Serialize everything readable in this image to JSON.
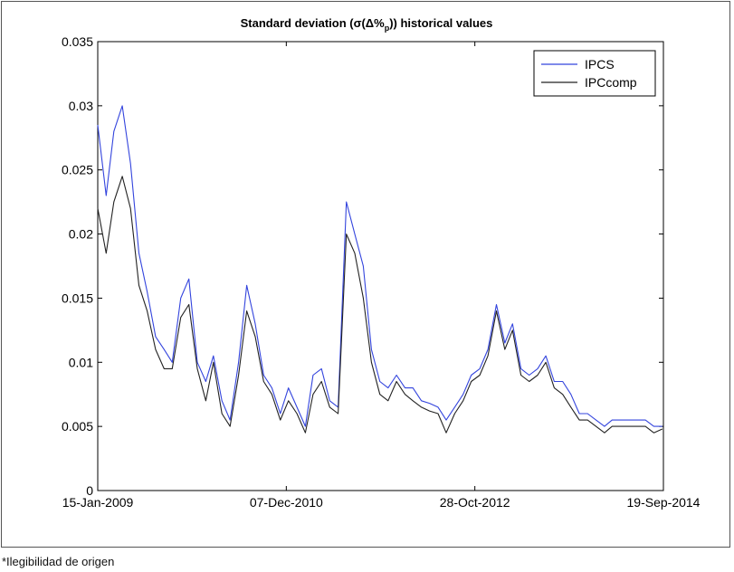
{
  "chart_data": {
    "type": "line",
    "title_parts": {
      "prefix": "Standard deviation (σ(Δ%",
      "subscript": "p",
      "suffix": ")) historical values"
    },
    "xlabel": "",
    "ylabel": "",
    "x_ticks": [
      {
        "date": "2009-01-15",
        "label": "15-Jan-2009"
      },
      {
        "date": "2010-12-07",
        "label": "07-Dec-2010"
      },
      {
        "date": "2012-10-28",
        "label": "28-Oct-2012"
      },
      {
        "date": "2014-09-19",
        "label": "19-Sep-2014"
      }
    ],
    "x_range": [
      "2009-01-15",
      "2014-09-19"
    ],
    "ylim": [
      0,
      0.035
    ],
    "y_ticks": [
      {
        "value": 0,
        "label": "0"
      },
      {
        "value": 0.005,
        "label": "0.005"
      },
      {
        "value": 0.01,
        "label": "0.01"
      },
      {
        "value": 0.015,
        "label": "0.015"
      },
      {
        "value": 0.02,
        "label": "0.02"
      },
      {
        "value": 0.025,
        "label": "0.025"
      },
      {
        "value": 0.03,
        "label": "0.03"
      },
      {
        "value": 0.035,
        "label": "0.035"
      }
    ],
    "grid": false,
    "legend_position": "top-right",
    "x": [
      "2009-01-15",
      "2009-02-15",
      "2009-03-15",
      "2009-04-15",
      "2009-05-15",
      "2009-06-15",
      "2009-07-15",
      "2009-08-15",
      "2009-09-15",
      "2009-10-15",
      "2009-11-15",
      "2009-12-15",
      "2010-01-15",
      "2010-02-15",
      "2010-03-15",
      "2010-04-15",
      "2010-05-15",
      "2010-06-15",
      "2010-07-15",
      "2010-08-15",
      "2010-09-15",
      "2010-10-15",
      "2010-11-15",
      "2010-12-15",
      "2011-01-15",
      "2011-02-15",
      "2011-03-15",
      "2011-04-15",
      "2011-05-15",
      "2011-06-15",
      "2011-07-15",
      "2011-08-15",
      "2011-09-15",
      "2011-10-15",
      "2011-11-15",
      "2011-12-15",
      "2012-01-15",
      "2012-02-15",
      "2012-03-15",
      "2012-04-15",
      "2012-05-15",
      "2012-06-15",
      "2012-07-15",
      "2012-08-15",
      "2012-09-15",
      "2012-10-15",
      "2012-11-15",
      "2012-12-15",
      "2013-01-15",
      "2013-02-15",
      "2013-03-15",
      "2013-04-15",
      "2013-05-15",
      "2013-06-15",
      "2013-07-15",
      "2013-08-15",
      "2013-09-15",
      "2013-10-15",
      "2013-11-15",
      "2013-12-15",
      "2014-01-15",
      "2014-02-15",
      "2014-03-15",
      "2014-04-15",
      "2014-05-15",
      "2014-06-15",
      "2014-07-15",
      "2014-08-15",
      "2014-09-15"
    ],
    "series": [
      {
        "name": "IPCS",
        "color": "#3344dd",
        "values": [
          0.0285,
          0.023,
          0.028,
          0.03,
          0.0255,
          0.0185,
          0.0155,
          0.012,
          0.011,
          0.01,
          0.015,
          0.0165,
          0.01,
          0.0085,
          0.0105,
          0.007,
          0.0055,
          0.01,
          0.016,
          0.013,
          0.009,
          0.008,
          0.006,
          0.008,
          0.0065,
          0.005,
          0.009,
          0.0095,
          0.007,
          0.0065,
          0.0225,
          0.02,
          0.0175,
          0.011,
          0.0085,
          0.008,
          0.009,
          0.008,
          0.008,
          0.007,
          0.0068,
          0.0065,
          0.0055,
          0.0065,
          0.0075,
          0.009,
          0.0095,
          0.011,
          0.0145,
          0.0115,
          0.013,
          0.0095,
          0.009,
          0.0095,
          0.0105,
          0.0085,
          0.0085,
          0.0075,
          0.006,
          0.006,
          0.0055,
          0.005,
          0.0055,
          0.0055,
          0.0055,
          0.0055,
          0.0055,
          0.005,
          0.005
        ]
      },
      {
        "name": "IPCcomp",
        "color": "#222222",
        "values": [
          0.022,
          0.0185,
          0.0225,
          0.0245,
          0.022,
          0.016,
          0.014,
          0.011,
          0.0095,
          0.0095,
          0.0135,
          0.0145,
          0.0095,
          0.007,
          0.01,
          0.006,
          0.005,
          0.009,
          0.014,
          0.012,
          0.0085,
          0.0075,
          0.0055,
          0.007,
          0.006,
          0.0045,
          0.0075,
          0.0085,
          0.0065,
          0.006,
          0.02,
          0.0185,
          0.015,
          0.01,
          0.0075,
          0.007,
          0.0085,
          0.0075,
          0.007,
          0.0065,
          0.0062,
          0.006,
          0.0045,
          0.006,
          0.007,
          0.0085,
          0.009,
          0.0105,
          0.014,
          0.011,
          0.0125,
          0.009,
          0.0085,
          0.009,
          0.01,
          0.008,
          0.0075,
          0.0065,
          0.0055,
          0.0055,
          0.005,
          0.0045,
          0.005,
          0.005,
          0.005,
          0.005,
          0.005,
          0.0045,
          0.0048
        ]
      }
    ]
  },
  "caption": "*Ilegibilidad de origen"
}
